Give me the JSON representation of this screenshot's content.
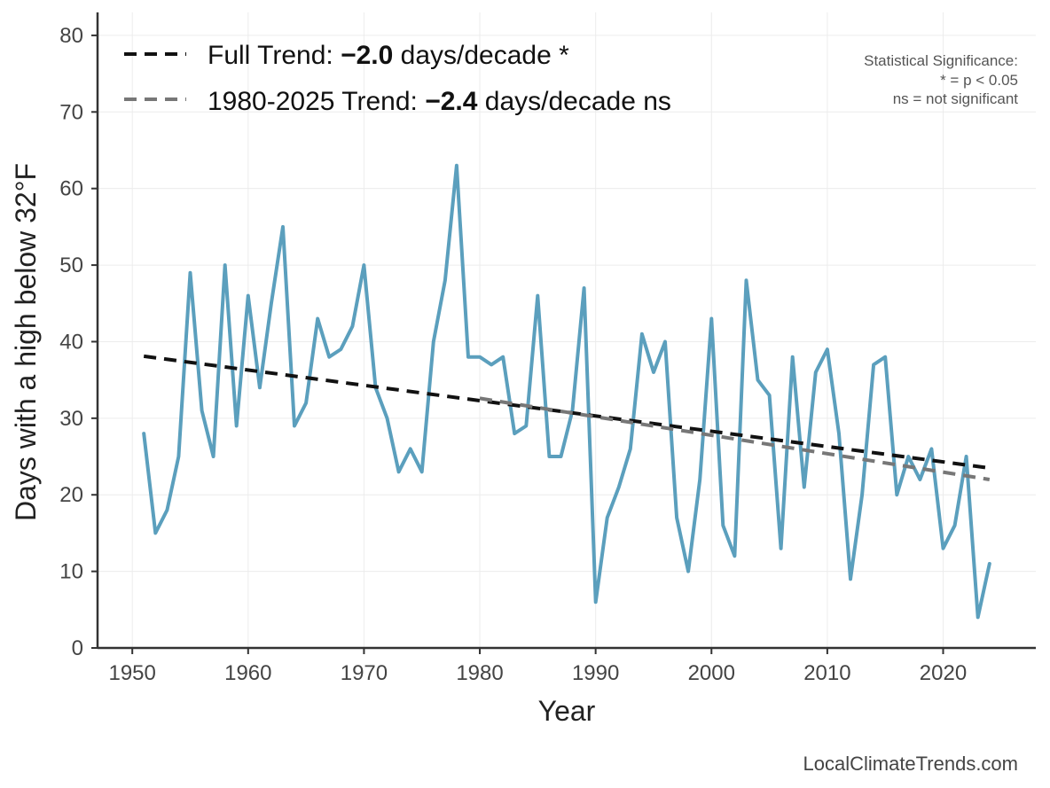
{
  "chart_data": {
    "type": "line",
    "xlabel": "Year",
    "ylabel": "Days with a high below 32°F",
    "xlim": [
      1947,
      2028
    ],
    "ylim": [
      0,
      83
    ],
    "xticks": [
      1950,
      1960,
      1970,
      1980,
      1990,
      2000,
      2010,
      2020
    ],
    "yticks": [
      0,
      10,
      20,
      30,
      40,
      50,
      60,
      70,
      80
    ],
    "grid": true,
    "legend_position": "top-left",
    "series": [
      {
        "color": "#5b9fbd",
        "x": [
          1951,
          1952,
          1953,
          1954,
          1955,
          1956,
          1957,
          1958,
          1959,
          1960,
          1961,
          1962,
          1963,
          1964,
          1965,
          1966,
          1967,
          1968,
          1969,
          1970,
          1971,
          1972,
          1973,
          1974,
          1975,
          1976,
          1977,
          1978,
          1979,
          1980,
          1981,
          1982,
          1983,
          1984,
          1985,
          1986,
          1987,
          1988,
          1989,
          1990,
          1991,
          1992,
          1993,
          1994,
          1995,
          1996,
          1997,
          1998,
          1999,
          2000,
          2001,
          2002,
          2003,
          2004,
          2005,
          2006,
          2007,
          2008,
          2009,
          2010,
          2011,
          2012,
          2013,
          2014,
          2015,
          2016,
          2017,
          2018,
          2019,
          2020,
          2021,
          2022,
          2023,
          2024
        ],
        "values": [
          28,
          15,
          18,
          25,
          49,
          31,
          25,
          50,
          29,
          46,
          34,
          45,
          55,
          29,
          32,
          43,
          38,
          39,
          42,
          50,
          34,
          30,
          23,
          26,
          23,
          40,
          48,
          63,
          38,
          38,
          37,
          38,
          28,
          29,
          46,
          25,
          25,
          31,
          47,
          6,
          17,
          21,
          26,
          41,
          36,
          40,
          17,
          10,
          22,
          43,
          16,
          12,
          48,
          35,
          33,
          13,
          38,
          21,
          36,
          39,
          28,
          9,
          20,
          37,
          38,
          20,
          25,
          22,
          26,
          13,
          16,
          25,
          4,
          11
        ]
      },
      {
        "name": "Full Trend",
        "color": "#111111",
        "style": "dashed",
        "x": [
          1951,
          2024
        ],
        "values": [
          38.1,
          23.5
        ]
      },
      {
        "name": "1980-2025 Trend",
        "color": "#777777",
        "style": "dashed",
        "x": [
          1980,
          2024
        ],
        "values": [
          32.6,
          22.0
        ]
      }
    ],
    "legend": [
      {
        "prefix": "Full Trend: ",
        "value": "−2.0",
        "suffix": " days/decade *",
        "color": "#111111"
      },
      {
        "prefix": "1980-2025 Trend: ",
        "value": "−2.4",
        "suffix": " days/decade ns",
        "color": "#777777"
      }
    ],
    "significance_note": [
      "Statistical Significance:",
      "* = p < 0.05",
      "ns = not significant"
    ],
    "credit": "LocalClimateTrends.com"
  }
}
